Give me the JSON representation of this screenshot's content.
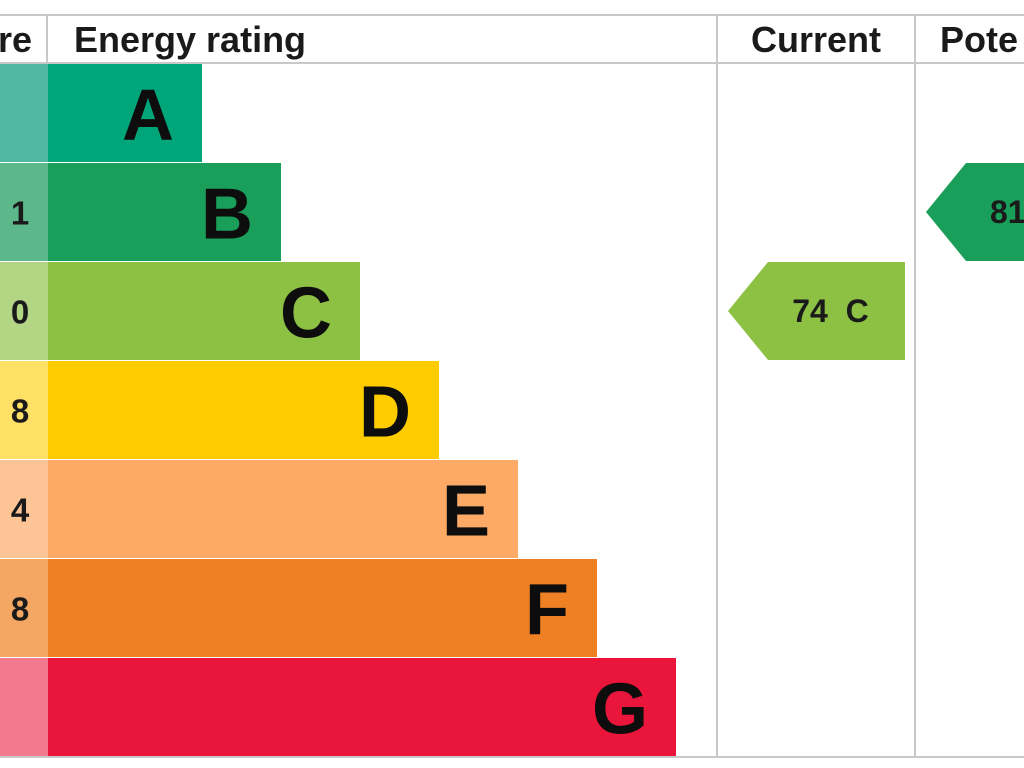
{
  "chart_data": {
    "type": "bar",
    "title": "",
    "headers": {
      "score": "re",
      "rating": "Energy rating",
      "current": "Current",
      "potential": "Pote"
    },
    "bands": [
      {
        "letter": "A",
        "score": "",
        "color": "#00a57a",
        "score_color": "#4fb8a0"
      },
      {
        "letter": "B",
        "score": "1",
        "color": "#1a9f5a",
        "score_color": "#5cb88a"
      },
      {
        "letter": "C",
        "score": "0",
        "color": "#8dc144",
        "score_color": "#b3d685"
      },
      {
        "letter": "D",
        "score": "8",
        "color": "#ffcc00",
        "score_color": "#ffe066"
      },
      {
        "letter": "E",
        "score": "4",
        "color": "#fcaa65",
        "score_color": "#fdc596"
      },
      {
        "letter": "F",
        "score": "8",
        "color": "#ef8023",
        "score_color": "#f4a663"
      },
      {
        "letter": "G",
        "score": "",
        "color": "#e9153b",
        "score_color": "#f27a8e"
      }
    ],
    "current": {
      "value": 74,
      "band": "C",
      "label": "74  C",
      "color": "#8dc144"
    },
    "potential": {
      "value": 81,
      "band": "B",
      "label": "81",
      "color": "#1a9f5a"
    }
  }
}
